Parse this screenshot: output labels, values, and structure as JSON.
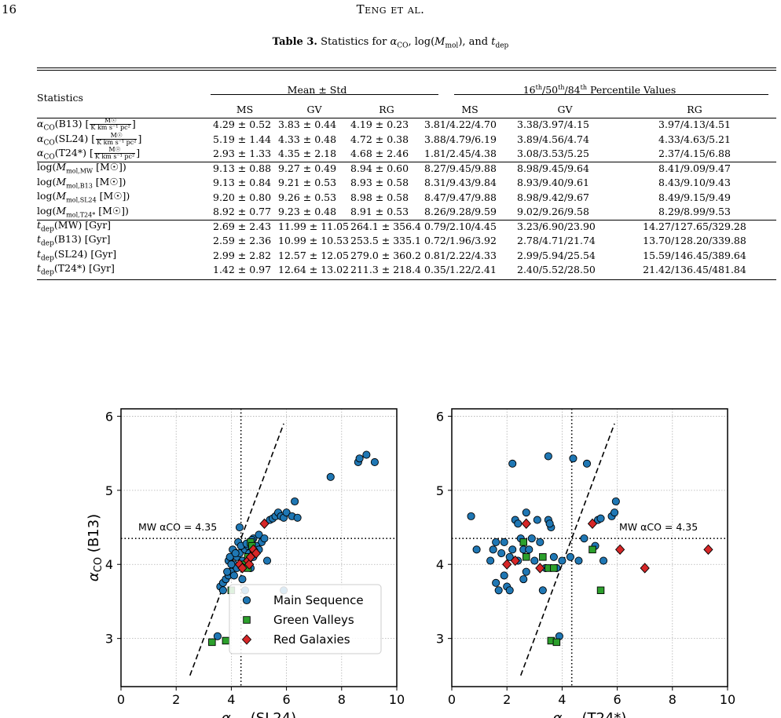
{
  "header": {
    "page_number": "16",
    "running_title": "Teng et al."
  },
  "table": {
    "caption_label": "Table 3.",
    "caption_text": "Statistics for α_CO, log(M_mol), and t_dep",
    "col_statistics": "Statistics",
    "group_mean": "Mean ± Std",
    "group_pct": "16th/50th/84th Percentile Values",
    "sub_cols": [
      "MS",
      "GV",
      "RG",
      "MS",
      "GV",
      "RG"
    ],
    "rows": [
      {
        "label": "αCO(B13)",
        "unit": "frac",
        "cells": [
          "4.29 ± 0.52",
          "3.83 ± 0.44",
          "4.19 ± 0.23",
          "3.81/4.22/4.70",
          "3.38/3.97/4.15",
          "3.97/4.13/4.51"
        ]
      },
      {
        "label": "αCO(SL24)",
        "unit": "frac",
        "cells": [
          "5.19 ± 1.44",
          "4.33 ± 0.48",
          "4.72 ± 0.38",
          "3.88/4.79/6.19",
          "3.89/4.56/4.74",
          "4.33/4.63/5.21"
        ]
      },
      {
        "label": "αCO(T24*)",
        "unit": "frac",
        "cells": [
          "2.93 ± 1.33",
          "4.35 ± 2.18",
          "4.68 ± 2.46",
          "1.81/2.45/4.38",
          "3.08/3.53/5.25",
          "2.37/4.15/6.88"
        ]
      },
      {
        "label": "log(Mmol,MW [M☉])",
        "cells": [
          "9.13 ± 0.88",
          "9.27 ± 0.49",
          "8.94 ± 0.60",
          "8.27/9.45/9.88",
          "8.98/9.45/9.64",
          "8.41/9.09/9.47"
        ]
      },
      {
        "label": "log(Mmol,B13 [M☉])",
        "cells": [
          "9.13 ± 0.84",
          "9.21 ± 0.53",
          "8.93 ± 0.58",
          "8.31/9.43/9.84",
          "8.93/9.40/9.61",
          "8.43/9.10/9.43"
        ]
      },
      {
        "label": "log(Mmol,SL24 [M☉])",
        "cells": [
          "9.20 ± 0.80",
          "9.26 ± 0.53",
          "8.98 ± 0.58",
          "8.47/9.47/9.88",
          "8.98/9.42/9.67",
          "8.49/9.15/9.49"
        ]
      },
      {
        "label": "log(Mmol,T24* [M☉])",
        "cells": [
          "8.92 ± 0.77",
          "9.23 ± 0.48",
          "8.91 ± 0.53",
          "8.26/9.28/9.59",
          "9.02/9.26/9.58",
          "8.29/8.99/9.53"
        ]
      },
      {
        "label": "tdep(MW) [Gyr]",
        "cells": [
          "2.69 ± 2.43",
          "11.99 ± 11.05",
          "264.1 ± 356.4",
          "0.79/2.10/4.45",
          "3.23/6.90/23.90",
          "14.27/127.65/329.28"
        ]
      },
      {
        "label": "tdep(B13) [Gyr]",
        "cells": [
          "2.59 ± 2.36",
          "10.99 ± 10.53",
          "253.5 ± 335.1",
          "0.72/1.96/3.92",
          "2.78/4.71/21.74",
          "13.70/128.20/339.88"
        ]
      },
      {
        "label": "tdep(SL24) [Gyr]",
        "cells": [
          "2.99 ± 2.82",
          "12.57 ± 12.05",
          "279.0 ± 360.2",
          "0.81/2.22/4.33",
          "2.99/5.94/25.54",
          "15.59/146.45/389.64"
        ]
      },
      {
        "label": "tdep(T24*) [Gyr]",
        "cells": [
          "1.42 ± 0.97",
          "12.64 ± 13.02",
          "211.3 ± 218.4",
          "0.35/1.22/2.41",
          "2.40/5.52/28.50",
          "21.42/136.45/481.84"
        ]
      }
    ],
    "unit_num": "M☉",
    "unit_den": "K km s⁻¹ pc²"
  },
  "colors": {
    "main_sequence": "#1f77b4",
    "green_valleys": "#2ca02c",
    "red_galaxies": "#d62728"
  },
  "chart_data": [
    {
      "type": "scatter",
      "xlabel": "αCO (SL24)",
      "ylabel": "αCO (B13)",
      "xlim": [
        0,
        10
      ],
      "ylim": [
        2.35,
        6.1
      ],
      "x_ticks": [
        0,
        2,
        4,
        6,
        8,
        10
      ],
      "y_ticks": [
        3,
        4,
        5,
        6
      ],
      "grid": true,
      "legend_placement": "lower-right",
      "annotation": "MW αCO = 4.35",
      "mw_alpha": 4.35,
      "identity_line": [
        [
          2.5,
          2.5
        ],
        [
          5.9,
          5.9
        ]
      ],
      "series": [
        {
          "name": "Main Sequence",
          "marker": "circle",
          "points": [
            [
              3.6,
              3.7
            ],
            [
              3.7,
              3.75
            ],
            [
              3.8,
              3.8
            ],
            [
              3.9,
              3.85
            ],
            [
              3.7,
              3.65
            ],
            [
              3.5,
              3.03
            ],
            [
              4.0,
              3.9
            ],
            [
              4.1,
              4.0
            ],
            [
              4.2,
              4.1
            ],
            [
              4.3,
              4.15
            ],
            [
              4.4,
              4.05
            ],
            [
              4.5,
              4.2
            ],
            [
              4.6,
              4.25
            ],
            [
              4.7,
              4.3
            ],
            [
              4.8,
              4.35
            ],
            [
              4.9,
              4.2
            ],
            [
              5.0,
              4.4
            ],
            [
              5.1,
              4.3
            ],
            [
              4.3,
              4.5
            ],
            [
              4.2,
              3.95
            ],
            [
              3.9,
              4.05
            ],
            [
              4.0,
              4.0
            ],
            [
              4.1,
              3.85
            ],
            [
              4.4,
              3.8
            ],
            [
              4.5,
              3.65
            ],
            [
              4.6,
              4.05
            ],
            [
              4.7,
              3.95
            ],
            [
              4.8,
              4.1
            ],
            [
              4.9,
              4.25
            ],
            [
              5.0,
              4.2
            ],
            [
              5.3,
              4.05
            ],
            [
              5.4,
              4.6
            ],
            [
              5.5,
              4.62
            ],
            [
              5.6,
              4.65
            ],
            [
              5.7,
              4.7
            ],
            [
              5.8,
              4.65
            ],
            [
              5.9,
              4.63
            ],
            [
              6.0,
              4.7
            ],
            [
              6.2,
              4.65
            ],
            [
              6.4,
              4.63
            ],
            [
              6.3,
              4.85
            ],
            [
              5.2,
              4.35
            ],
            [
              4.25,
              4.3
            ],
            [
              3.95,
              4.1
            ],
            [
              4.05,
              4.2
            ],
            [
              4.15,
              4.15
            ],
            [
              4.35,
              4.25
            ],
            [
              7.6,
              5.18
            ],
            [
              8.6,
              5.38
            ],
            [
              8.65,
              5.43
            ],
            [
              8.9,
              5.48
            ],
            [
              9.2,
              5.38
            ],
            [
              5.9,
              3.65
            ],
            [
              4.55,
              4.28
            ],
            [
              4.75,
              4.33
            ],
            [
              4.85,
              4.15
            ],
            [
              3.85,
              3.9
            ],
            [
              4.65,
              4.15
            ]
          ]
        },
        {
          "name": "Green Valleys",
          "marker": "square",
          "points": [
            [
              3.3,
              2.95
            ],
            [
              3.8,
              2.97
            ],
            [
              4.0,
              3.65
            ],
            [
              4.5,
              4.0
            ],
            [
              4.6,
              4.1
            ],
            [
              4.7,
              4.3
            ],
            [
              4.6,
              3.95
            ],
            [
              4.8,
              4.15
            ],
            [
              4.75,
              4.25
            ]
          ]
        },
        {
          "name": "Red Galaxies",
          "marker": "diamond",
          "points": [
            [
              4.3,
              4.0
            ],
            [
              4.4,
              3.95
            ],
            [
              4.6,
              4.05
            ],
            [
              4.65,
              4.0
            ],
            [
              4.7,
              4.1
            ],
            [
              4.8,
              4.2
            ],
            [
              4.9,
              4.15
            ],
            [
              5.2,
              4.55
            ]
          ]
        }
      ]
    },
    {
      "type": "scatter",
      "xlabel": "αCO (T24*)",
      "ylabel": "",
      "xlim": [
        0,
        10
      ],
      "ylim": [
        2.35,
        6.1
      ],
      "x_ticks": [
        0,
        2,
        4,
        6,
        8,
        10
      ],
      "y_ticks": [
        3,
        4,
        5,
        6
      ],
      "grid": true,
      "annotation": "MW αCO = 4.35",
      "mw_alpha": 4.35,
      "identity_line": [
        [
          2.5,
          2.5
        ],
        [
          5.9,
          5.9
        ]
      ],
      "series": [
        {
          "name": "Main Sequence",
          "marker": "circle",
          "points": [
            [
              0.7,
              4.65
            ],
            [
              0.9,
              4.2
            ],
            [
              1.4,
              4.05
            ],
            [
              1.5,
              4.2
            ],
            [
              1.6,
              3.75
            ],
            [
              1.7,
              3.65
            ],
            [
              1.6,
              4.3
            ],
            [
              1.9,
              4.3
            ],
            [
              2.0,
              3.7
            ],
            [
              2.1,
              3.65
            ],
            [
              1.9,
              3.85
            ],
            [
              2.2,
              4.2
            ],
            [
              2.3,
              4.6
            ],
            [
              2.4,
              4.55
            ],
            [
              2.2,
              5.36
            ],
            [
              2.5,
              4.35
            ],
            [
              2.6,
              4.2
            ],
            [
              2.7,
              4.7
            ],
            [
              2.8,
              4.2
            ],
            [
              2.7,
              3.9
            ],
            [
              3.0,
              4.05
            ],
            [
              3.1,
              4.6
            ],
            [
              3.3,
              3.65
            ],
            [
              3.4,
              3.95
            ],
            [
              3.5,
              5.46
            ],
            [
              3.5,
              4.6
            ],
            [
              3.6,
              4.5
            ],
            [
              3.7,
              4.1
            ],
            [
              3.8,
              3.95
            ],
            [
              3.9,
              3.03
            ],
            [
              4.0,
              4.05
            ],
            [
              4.3,
              4.1
            ],
            [
              4.4,
              5.43
            ],
            [
              4.6,
              4.05
            ],
            [
              4.8,
              4.35
            ],
            [
              4.9,
              5.36
            ],
            [
              5.2,
              4.25
            ],
            [
              5.3,
              4.6
            ],
            [
              5.4,
              4.62
            ],
            [
              5.5,
              4.05
            ],
            [
              5.8,
              4.65
            ],
            [
              5.9,
              4.7
            ],
            [
              5.95,
              4.85
            ],
            [
              2.1,
              4.1
            ],
            [
              2.4,
              4.05
            ],
            [
              3.2,
              4.3
            ],
            [
              2.9,
              4.35
            ],
            [
              1.8,
              4.15
            ],
            [
              3.55,
              4.55
            ],
            [
              2.6,
              3.8
            ]
          ]
        },
        {
          "name": "Green Valleys",
          "marker": "square",
          "points": [
            [
              2.6,
              4.3
            ],
            [
              2.7,
              4.1
            ],
            [
              3.3,
              4.1
            ],
            [
              3.5,
              3.95
            ],
            [
              3.6,
              2.97
            ],
            [
              3.7,
              3.95
            ],
            [
              3.8,
              2.95
            ],
            [
              5.1,
              4.2
            ],
            [
              5.4,
              3.65
            ]
          ]
        },
        {
          "name": "Red Galaxies",
          "marker": "diamond",
          "points": [
            [
              2.0,
              4.0
            ],
            [
              2.3,
              4.05
            ],
            [
              2.7,
              4.55
            ],
            [
              3.2,
              3.95
            ],
            [
              5.1,
              4.55
            ],
            [
              6.1,
              4.2
            ],
            [
              7.0,
              3.95
            ],
            [
              9.3,
              4.2
            ]
          ]
        }
      ]
    }
  ]
}
